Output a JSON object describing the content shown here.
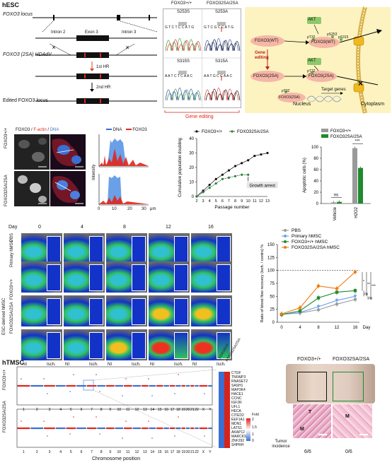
{
  "panel_a": {
    "cell_label": "hESC",
    "locus_label": "FOXO3 locus",
    "intron2": "Intron 2",
    "exon3": "Exon 3",
    "intron3": "Intron 3",
    "vector_label": "FOXO3 (2SA) HDAdV",
    "hr1": "1st HR",
    "hr2": "2nd HR",
    "edited_label": "Edited FOXO3 locus",
    "seq_wt_header": "FOXO3+/+",
    "seq_mut_header": "FOXO32SA/2SA",
    "s253s": "S253S",
    "s253a": "S253A",
    "s315s": "S315S",
    "s315a": "S315A",
    "seq1": "G T C T C C A T G",
    "seq2": "G T C G C C A T G",
    "seq3": "A A T C T C A A C",
    "seq4": "A A T G C C A A C",
    "gene_editing": "Gene editing",
    "schematic": {
      "akt": "AKT",
      "foxo_wt": "FOXO3(WT)",
      "foxo_2sa": "FOXO3(2SA)",
      "pt32": "pT32",
      "ps253": "pS253",
      "ps315": "pS315",
      "gene_editing": "Gene\nediting",
      "target_genes": "Target genes",
      "nucleus": "Nucleus",
      "cytoplasm": "Cytoplasm"
    }
  },
  "panel_b": {
    "stain_title_1": "FOXO3",
    "stain_title_2": "F-actin",
    "stain_title_3": "DNA",
    "row1": "FOXO3+/+",
    "row2": "FOXO32SA/2SA",
    "legend_dna": "DNA",
    "legend_foxo3": "FOXO3",
    "ylabel": "Intensity",
    "xlabel": "μm",
    "xticks": [
      "0",
      "10",
      "20",
      "30"
    ]
  },
  "chart_data": [
    {
      "type": "line",
      "ylabel": "Cumulative population doubling",
      "xlabel": "Passage number",
      "xticks": [
        "2",
        "3",
        "4",
        "5",
        "6",
        "7",
        "8",
        "9",
        "10",
        "11",
        "12",
        "13"
      ],
      "yticks": [
        "0",
        "10",
        "20",
        "30",
        "40"
      ],
      "ylim": [
        0,
        40
      ],
      "series": [
        {
          "name": "FOXO3+/+",
          "x": [
            2,
            3,
            4,
            5,
            6,
            7,
            8,
            9,
            10,
            11,
            12,
            13
          ],
          "y": [
            0,
            4,
            8,
            12,
            15,
            18,
            21,
            23,
            25,
            28,
            29,
            30
          ]
        },
        {
          "name": "FOXO32SA/2SA",
          "x": [
            2,
            3,
            4,
            5,
            6,
            7,
            8,
            9,
            10
          ],
          "y": [
            0,
            3,
            6,
            9,
            12,
            13,
            14,
            15,
            15
          ]
        }
      ],
      "annotation": "Growth arrest"
    },
    {
      "type": "bar",
      "ylabel": "Apoptotic cells (%)",
      "categories": [
        "Vehicle",
        "H2O2"
      ],
      "yticks": [
        "0",
        "20",
        "40",
        "60",
        "80",
        "100"
      ],
      "ylim": [
        0,
        100
      ],
      "series": [
        {
          "name": "FOXO3+/+",
          "values": [
            2,
            98
          ]
        },
        {
          "name": "FOXO32SA/2SA",
          "values": [
            3,
            63
          ]
        }
      ],
      "significance": [
        "ns",
        "***"
      ]
    },
    {
      "type": "line",
      "ylabel": "Ratio of blood flow recovery (isch. / contro) %",
      "xlabel": "Day",
      "xticks": [
        "0",
        "4",
        "8",
        "12",
        "16"
      ],
      "yticks": [
        "0",
        "25",
        "50",
        "75",
        "100",
        "125",
        "150"
      ],
      "ylim": [
        0,
        150
      ],
      "series": [
        {
          "name": "PBS",
          "x": [
            0,
            4,
            8,
            12,
            16
          ],
          "y": [
            15,
            18,
            24,
            35,
            44
          ]
        },
        {
          "name": "Primary hMSC",
          "x": [
            0,
            4,
            8,
            12,
            16
          ],
          "y": [
            15,
            19,
            30,
            42,
            50
          ]
        },
        {
          "name": "FOXO3+/+ hMSC",
          "x": [
            0,
            4,
            8,
            12,
            16
          ],
          "y": [
            15,
            22,
            47,
            58,
            61
          ]
        },
        {
          "name": "FOXO32SA/2SA hMSC",
          "x": [
            0,
            4,
            8,
            12,
            16
          ],
          "y": [
            16,
            28,
            70,
            65,
            97
          ]
        }
      ],
      "significance": [
        "*",
        "**",
        "***",
        "ns",
        "ns"
      ]
    }
  ],
  "panel_c": {
    "day_label": "Day",
    "days": [
      "0",
      "4",
      "8",
      "12",
      "16"
    ],
    "rows": [
      "PBS",
      "Primary hMSC",
      "FOXO3+/+",
      "FOXO32SA/2SA"
    ],
    "group_label": "ESC-derived hMSC",
    "ni": "NI",
    "isch": "Isch."
  },
  "panel_d": {
    "cell_label": "hTMSC",
    "row1": "FOXO3+/+",
    "row2": "FOXO32SA/2SA",
    "xlabel": "Chromosome position",
    "chromosomes": [
      "1",
      "2",
      "3",
      "4",
      "5",
      "6",
      "7",
      "8",
      "9",
      "10",
      "11",
      "12",
      "13",
      "14",
      "15",
      "16",
      "17",
      "18",
      "19",
      "20",
      "21",
      "22",
      "X",
      "Y"
    ],
    "heatmap_header_1": "FOXO3+/+",
    "heatmap_header_2": "FOXO32SA/2SA",
    "genes": [
      "CTGF",
      "TNFAIP3",
      "RNASET2",
      "SASH1",
      "MAP3K4",
      "HACE1",
      "CCNC",
      "IGF2R",
      "UFL1",
      "HECA",
      "CITED2",
      "EEF1A1",
      "MDN1",
      "LATS1",
      "AKAP12",
      "MARCKS",
      "ZNF292",
      "SHPRH"
    ],
    "legend_title": "Fold",
    "legend_values": [
      "2",
      "1.5",
      "1",
      "0"
    ],
    "tumor_header_1": "FOXO3+/+",
    "tumor_header_2": "FOXO32SA/2SA",
    "tumor_label": "Tumor incidence",
    "tumor_1": "6/6",
    "tumor_2": "0/6",
    "tissue_t": "T",
    "tissue_m": "M"
  },
  "colors": {
    "blue": "#3b6fd1",
    "red": "#e0261c",
    "green": "#1f8a2e",
    "orange": "#f07a12",
    "gray": "#9a9a9a",
    "lightblue": "#6aa0e8",
    "schematic_bg": "#fdf3c0"
  }
}
